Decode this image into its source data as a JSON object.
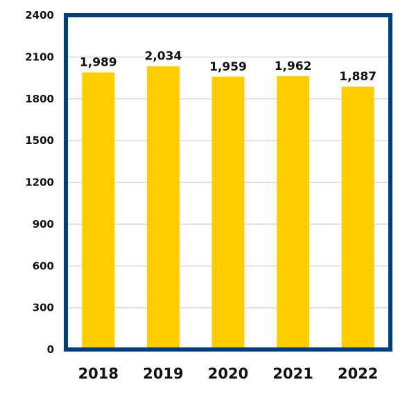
{
  "chart_data": {
    "type": "bar",
    "title": "",
    "xlabel": "",
    "ylabel": "",
    "categories": [
      "2018",
      "2019",
      "2020",
      "2021",
      "2022"
    ],
    "values": [
      1989,
      2034,
      1959,
      1962,
      1887
    ],
    "data_labels": [
      "1,989",
      "2,034",
      "1,959",
      "1,962",
      "1,887"
    ],
    "ylim": [
      0,
      2400
    ],
    "yticks": [
      0,
      300,
      600,
      900,
      1200,
      1500,
      1800,
      2100,
      2400
    ],
    "grid": true,
    "legend": "none",
    "colors": {
      "bar": "#FFCC00",
      "frame": "#003F7F",
      "grid": "#D9D9D9",
      "text": "#111111"
    }
  }
}
